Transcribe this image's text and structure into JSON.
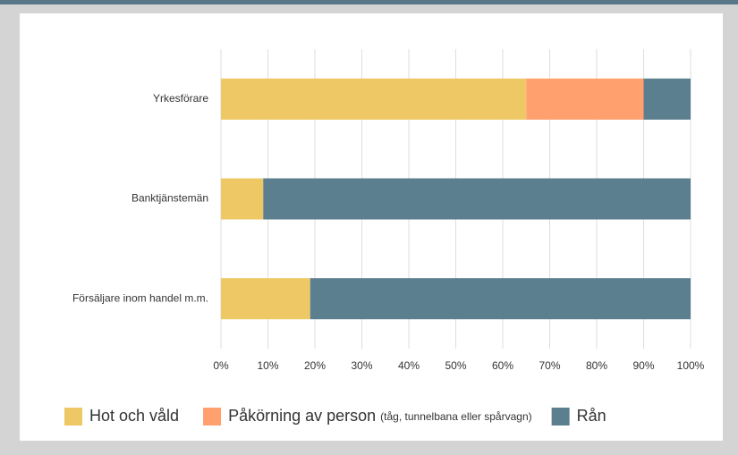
{
  "chart_data": {
    "type": "stacked_barh",
    "categories": [
      "Yrkesförare",
      "Banktjänstemän",
      "Försäljare inom handel m.m."
    ],
    "series": [
      {
        "name": "Hot och våld",
        "color": "#eec864",
        "values": [
          65,
          9,
          19
        ]
      },
      {
        "name": "Påkörning av person",
        "name_note": "(tåg, tunnelbana eller spårvagn)",
        "color": "#ffa06e",
        "values": [
          25,
          0,
          0
        ]
      },
      {
        "name": "Rån",
        "color": "#5b7f8f",
        "values": [
          10,
          91,
          81
        ]
      }
    ],
    "xlim": [
      0,
      100
    ],
    "xticks": [
      {
        "value": 0,
        "label": "0%"
      },
      {
        "value": 10,
        "label": "10%"
      },
      {
        "value": 20,
        "label": "20%"
      },
      {
        "value": 30,
        "label": "30%"
      },
      {
        "value": 40,
        "label": "40%"
      },
      {
        "value": 50,
        "label": "50%"
      },
      {
        "value": 60,
        "label": "60%"
      },
      {
        "value": 70,
        "label": "70%"
      },
      {
        "value": 80,
        "label": "80%"
      },
      {
        "value": 90,
        "label": "90%"
      },
      {
        "value": 100,
        "label": "100%"
      }
    ],
    "grid": true,
    "legend": "bottom"
  }
}
